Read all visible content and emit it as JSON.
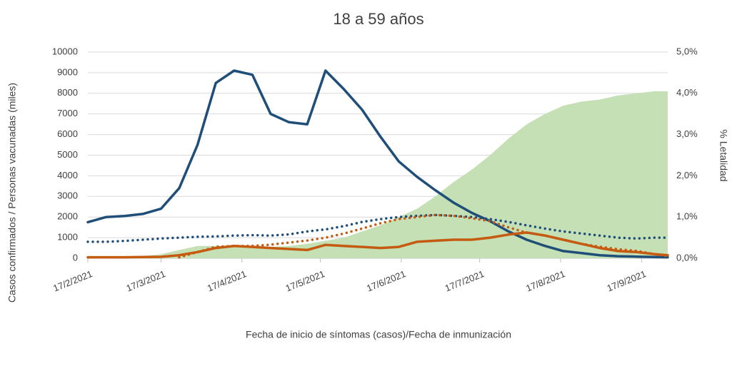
{
  "chart_data": {
    "type": "line",
    "title": "18 a 59 años",
    "x_label": "Fecha de inicio de síntomas (casos)/Fecha de inmunización",
    "y_label": "Casos confirmados  / Personas vacunadas  (miles)",
    "y2_label": "% Letalidad",
    "grid": true,
    "x": [
      "2021-02-17",
      "2021-02-24",
      "2021-03-03",
      "2021-03-10",
      "2021-03-17",
      "2021-03-24",
      "2021-03-31",
      "2021-04-07",
      "2021-04-14",
      "2021-04-21",
      "2021-04-28",
      "2021-05-05",
      "2021-05-12",
      "2021-05-19",
      "2021-05-26",
      "2021-06-02",
      "2021-06-09",
      "2021-06-16",
      "2021-06-23",
      "2021-06-30",
      "2021-07-07",
      "2021-07-14",
      "2021-07-21",
      "2021-07-28",
      "2021-08-04",
      "2021-08-11",
      "2021-08-18",
      "2021-08-25",
      "2021-09-01",
      "2021-09-08",
      "2021-09-15",
      "2021-09-22",
      "2021-09-27"
    ],
    "xlim": [
      "2021-02-17",
      "2021-09-27"
    ],
    "xticks": [
      {
        "value": "2021-02-17",
        "label": "17/2/2021"
      },
      {
        "value": "2021-03-17",
        "label": "17/3/2021"
      },
      {
        "value": "2021-04-17",
        "label": "17/4/2021"
      },
      {
        "value": "2021-05-17",
        "label": "17/5/2021"
      },
      {
        "value": "2021-06-17",
        "label": "17/6/2021"
      },
      {
        "value": "2021-07-17",
        "label": "17/7/2021"
      },
      {
        "value": "2021-08-17",
        "label": "17/8/2021"
      },
      {
        "value": "2021-09-17",
        "label": "17/9/2021"
      }
    ],
    "ylim": [
      0,
      10000
    ],
    "yticks": [
      0,
      1000,
      2000,
      3000,
      4000,
      5000,
      6000,
      7000,
      8000,
      9000,
      10000
    ],
    "y2lim": [
      0,
      5
    ],
    "y2ticks": [
      {
        "value": 0,
        "label": "0,0%"
      },
      {
        "value": 1,
        "label": "1,0%"
      },
      {
        "value": 2,
        "label": "2,0%"
      },
      {
        "value": 3,
        "label": "3,0%"
      },
      {
        "value": 4,
        "label": "4,0%"
      },
      {
        "value": 5,
        "label": "5,0%"
      }
    ],
    "series": [
      {
        "kind": "area",
        "color": "#c5e0b4",
        "values": [
          0,
          0,
          50,
          100,
          200,
          400,
          600,
          600,
          600,
          600,
          550,
          600,
          700,
          850,
          1000,
          1300,
          1600,
          2000,
          2400,
          3000,
          3700,
          4300,
          5000,
          5800,
          6500,
          7000,
          7400,
          7600,
          7700,
          7900,
          8000,
          8100,
          8100
        ]
      },
      {
        "kind": "line",
        "color": "#1f4e79",
        "values": [
          1750,
          2000,
          2050,
          2150,
          2400,
          3400,
          5500,
          8500,
          9100,
          8900,
          7000,
          6600,
          6500,
          9100,
          8200,
          7200,
          5900,
          4700,
          3950,
          3300,
          2700,
          2200,
          1800,
          1300,
          900,
          600,
          350,
          250,
          150,
          100,
          80,
          60,
          50
        ]
      },
      {
        "kind": "line",
        "color": "#c55a11",
        "values": [
          50,
          50,
          50,
          60,
          70,
          150,
          300,
          500,
          600,
          550,
          500,
          450,
          400,
          650,
          600,
          550,
          500,
          550,
          800,
          850,
          900,
          900,
          1000,
          1150,
          1250,
          1100,
          900,
          700,
          500,
          350,
          300,
          200,
          150
        ]
      },
      {
        "kind": "line",
        "dash": "dotted",
        "axis": "y2",
        "color": "#1f4e79",
        "values": [
          0.4,
          0.4,
          0.42,
          0.45,
          0.48,
          0.5,
          0.52,
          0.53,
          0.55,
          0.56,
          0.55,
          0.58,
          0.65,
          0.7,
          0.78,
          0.88,
          0.95,
          1.0,
          1.03,
          1.05,
          1.03,
          1.0,
          0.95,
          0.88,
          0.8,
          0.72,
          0.65,
          0.6,
          0.55,
          0.5,
          0.48,
          0.5,
          0.5
        ]
      },
      {
        "kind": "line",
        "dash": "dotted",
        "axis": "y2",
        "color": "#c55a11",
        "values": [
          null,
          null,
          null,
          null,
          null,
          0.02,
          0.15,
          0.28,
          0.3,
          0.3,
          0.33,
          0.38,
          0.43,
          0.5,
          0.6,
          0.72,
          0.85,
          0.95,
          1.0,
          1.05,
          1.03,
          0.97,
          0.9,
          0.75,
          0.62,
          0.55,
          0.45,
          0.35,
          0.28,
          0.22,
          0.18,
          0.1,
          0.05
        ]
      }
    ]
  }
}
